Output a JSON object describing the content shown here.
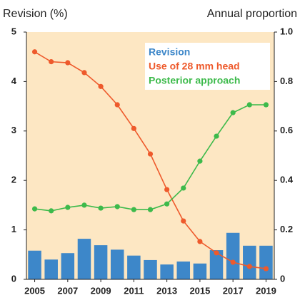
{
  "chart_data": {
    "type": "bar",
    "y_label": "Revision (%)",
    "y2_label": "Annual proportion",
    "x": [
      2005,
      2006,
      2007,
      2008,
      2009,
      2010,
      2011,
      2012,
      2013,
      2014,
      2015,
      2016,
      2017,
      2018,
      2019
    ],
    "xlim": [
      2004.5,
      2019.5
    ],
    "xticks": [
      2005,
      2007,
      2009,
      2011,
      2013,
      2015,
      2017,
      2019
    ],
    "ylim": [
      0,
      5
    ],
    "yticks": [
      0,
      1,
      2,
      3,
      4,
      5
    ],
    "y2lim": [
      0,
      1
    ],
    "y2ticks": [
      0,
      0.2,
      0.4,
      0.6,
      0.8,
      {
        "value": 1,
        "label": "1.0"
      }
    ],
    "background": "#fde7c3",
    "series": [
      {
        "name": "Revision",
        "type": "bar",
        "color": "#3d87c9",
        "values": [
          0.58,
          0.4,
          0.53,
          0.82,
          0.69,
          0.6,
          0.48,
          0.39,
          0.3,
          0.36,
          0.32,
          0.59,
          0.94,
          0.68,
          0.68
        ]
      },
      {
        "name": "Use of 28 mm head",
        "type": "line",
        "axis": "y2",
        "color": "#ee5a2c",
        "values": [
          0.92,
          0.88,
          0.876,
          0.836,
          0.78,
          0.706,
          0.61,
          0.507,
          0.363,
          0.236,
          0.153,
          0.107,
          0.069,
          0.052,
          0.043
        ]
      },
      {
        "name": "Posterior approach",
        "type": "line",
        "axis": "y2",
        "color": "#3dba4b",
        "values": [
          0.285,
          0.277,
          0.291,
          0.3,
          0.288,
          0.294,
          0.282,
          0.282,
          0.305,
          0.369,
          0.478,
          0.579,
          0.674,
          0.706,
          0.706
        ]
      }
    ]
  }
}
